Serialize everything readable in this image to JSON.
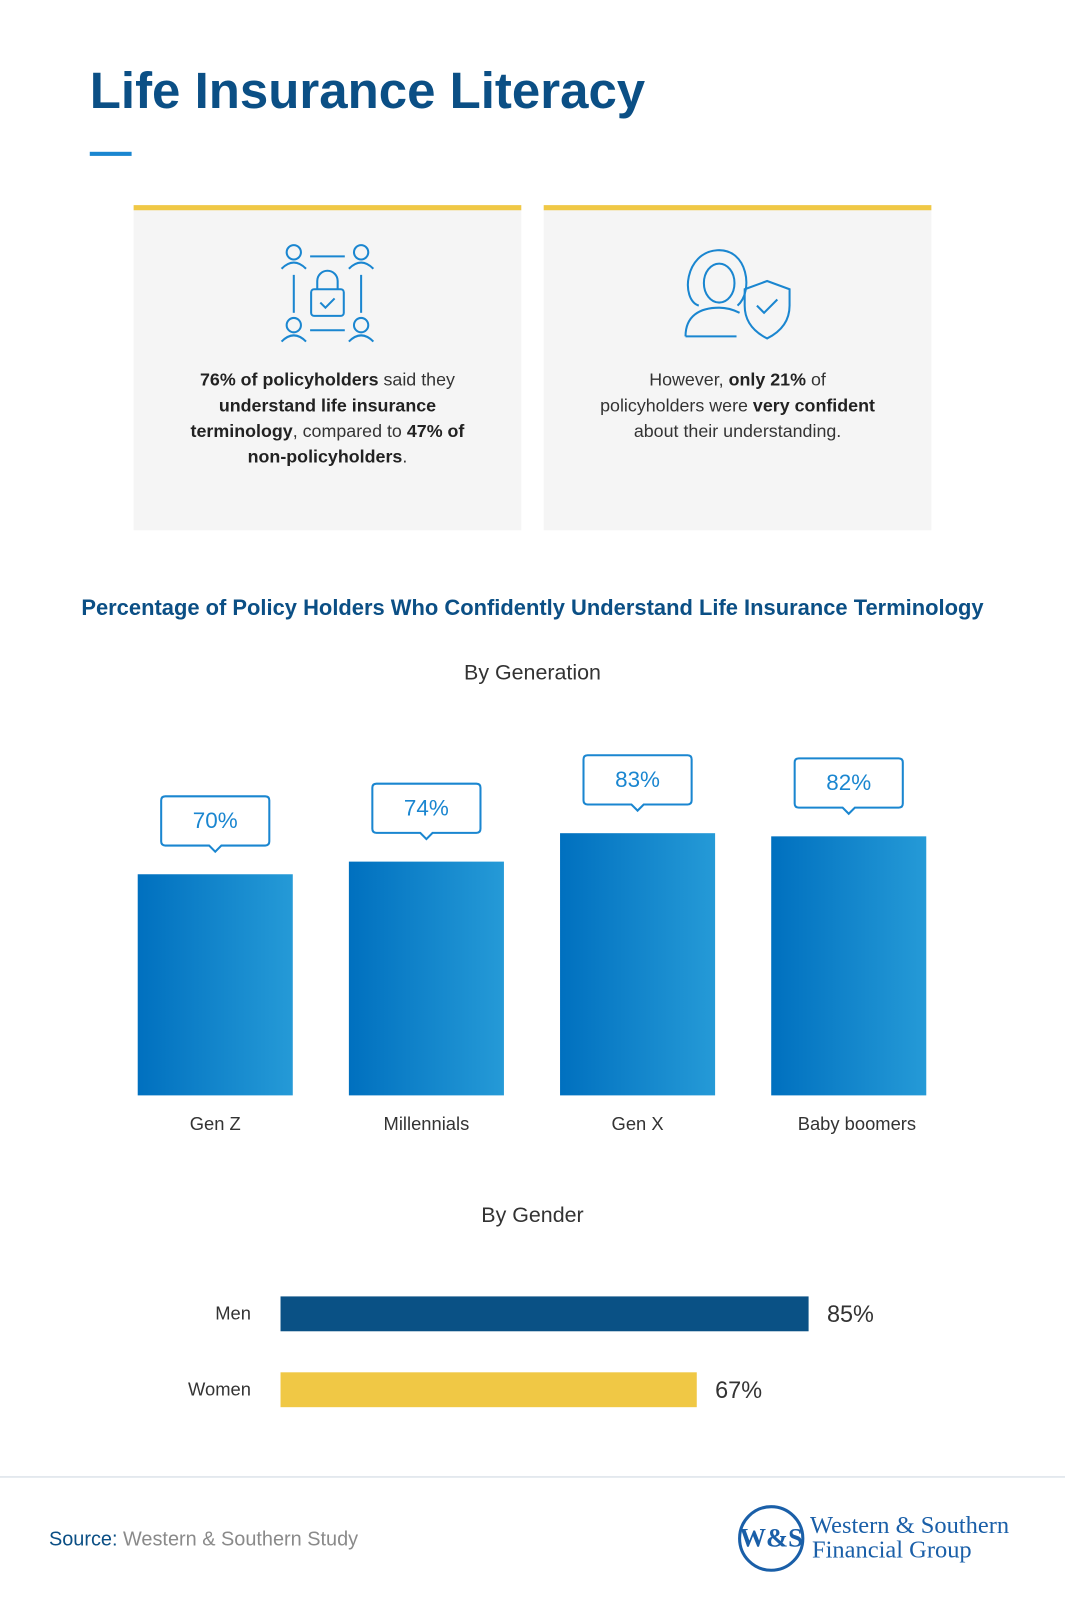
{
  "header": {
    "title": "Life Insurance Literacy"
  },
  "cards": [
    {
      "text": [
        {
          "text": "76% of policyholders",
          "bold": true
        },
        {
          "text": " said they ",
          "bold": false
        },
        {
          "text": "understand life insurance terminology",
          "bold": true
        },
        {
          "text": ", compared to ",
          "bold": false
        },
        {
          "text": "47% of non-policyholders",
          "bold": true
        },
        {
          "text": ".",
          "bold": false
        }
      ]
    },
    {
      "text": [
        {
          "text": "However, ",
          "bold": false
        },
        {
          "text": "only 21%",
          "bold": true
        },
        {
          "text": " of policyholders were ",
          "bold": false
        },
        {
          "text": "very confident",
          "bold": true
        },
        {
          "text": " about their understanding.",
          "bold": false
        }
      ]
    }
  ],
  "charts_heading": "Percentage of Policy Holders Who Confidently Understand Life Insurance Terminology",
  "chart_data": [
    {
      "type": "bar",
      "subtitle": "By Generation",
      "categories": [
        "Gen Z",
        "Millennials",
        "Gen X",
        "Baby boomers"
      ],
      "values": [
        70,
        74,
        83,
        82
      ],
      "value_labels": [
        "70%",
        "74%",
        "83%",
        "82%"
      ],
      "colors": [
        "#0070bf",
        "#259ad7"
      ],
      "ylim": [
        0,
        100
      ]
    },
    {
      "type": "barh",
      "subtitle": "By Gender",
      "categories": [
        "Men",
        "Women"
      ],
      "values": [
        85,
        67
      ],
      "value_labels": [
        "85%",
        "67%"
      ],
      "colors": [
        "#0a5185",
        "#f0c845"
      ],
      "xlim": [
        0,
        100
      ]
    }
  ],
  "source": {
    "label": "Source:",
    "text": "Western & Southern Study"
  },
  "logo": {
    "mark": "W&S",
    "line1": "Western & Southern",
    "line2": "Financial Group"
  }
}
